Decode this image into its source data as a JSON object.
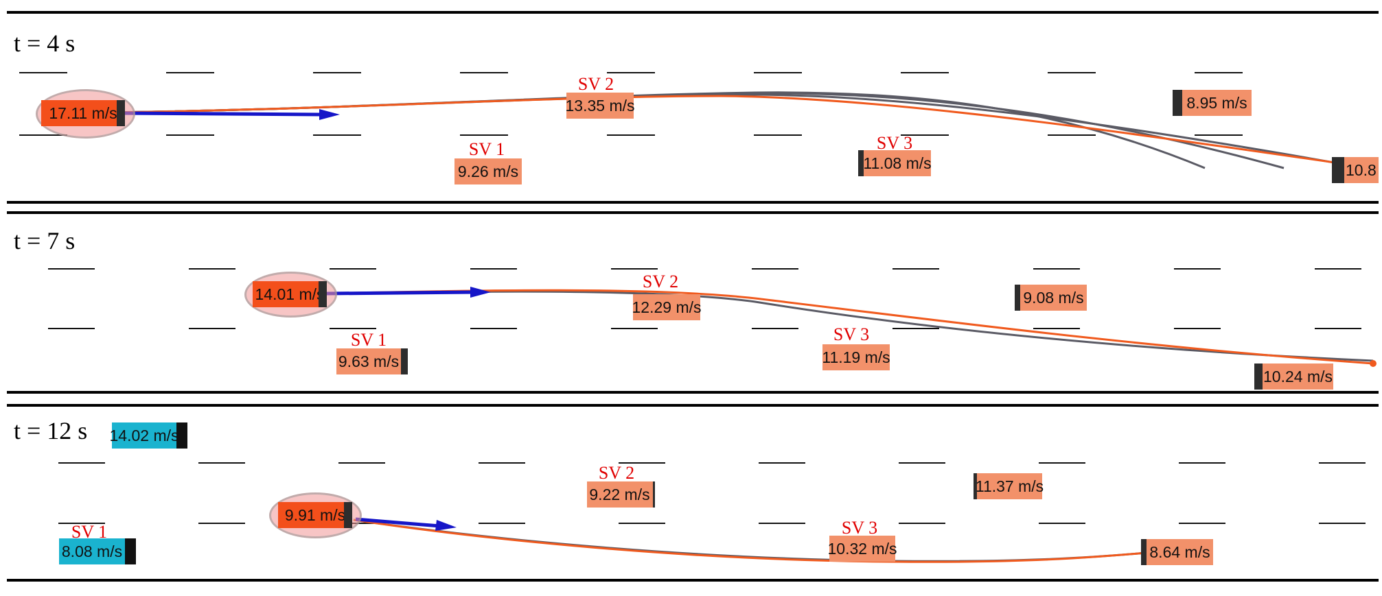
{
  "colors": {
    "ego": "#f34f1b",
    "surrounding": "#f2916a",
    "other_lane": "#1ab3cf",
    "plan_arrow": "#1616c8",
    "selected_trajectory": "#f05a1e",
    "candidate_trajectory": "#5a5a64",
    "sv_label": "#e00000"
  },
  "panels": [
    {
      "time_label": "t = 4 s",
      "ego": {
        "speed": "17.11  m/s"
      },
      "sv_labels": [
        "SV 1",
        "SV 2",
        "SV 3"
      ],
      "vehicles": [
        {
          "id": "sv2",
          "speed": "13.35  m/s"
        },
        {
          "id": "sv1",
          "speed": "9.26  m/s"
        },
        {
          "id": "sv3",
          "speed": "11.08  m/s"
        },
        {
          "id": "v4",
          "speed": "8.95  m/s"
        },
        {
          "id": "v5",
          "speed": "10.8"
        }
      ]
    },
    {
      "time_label": "t = 7 s",
      "ego": {
        "speed": "14.01  m/s"
      },
      "sv_labels": [
        "SV 1",
        "SV 2",
        "SV 3"
      ],
      "vehicles": [
        {
          "id": "sv2",
          "speed": "12.29  m/s"
        },
        {
          "id": "sv1",
          "speed": "9.63  m/s"
        },
        {
          "id": "sv3",
          "speed": "11.19  m/s"
        },
        {
          "id": "v4",
          "speed": "9.08  m/s"
        },
        {
          "id": "v5",
          "speed": "10.24  m/s"
        }
      ]
    },
    {
      "time_label": "t = 12 s",
      "ego": {
        "speed": "9.91  m/s"
      },
      "sv_labels": [
        "SV 1",
        "SV 2",
        "SV 3"
      ],
      "vehicles": [
        {
          "id": "cyan_top",
          "speed": "14.02  m/s"
        },
        {
          "id": "sv1",
          "speed": "8.08  m/s"
        },
        {
          "id": "sv2",
          "speed": "9.22  m/s"
        },
        {
          "id": "sv3",
          "speed": "10.32  m/s"
        },
        {
          "id": "v4",
          "speed": "11.37  m/s"
        },
        {
          "id": "v5",
          "speed": "8.64  m/s"
        }
      ]
    }
  ]
}
